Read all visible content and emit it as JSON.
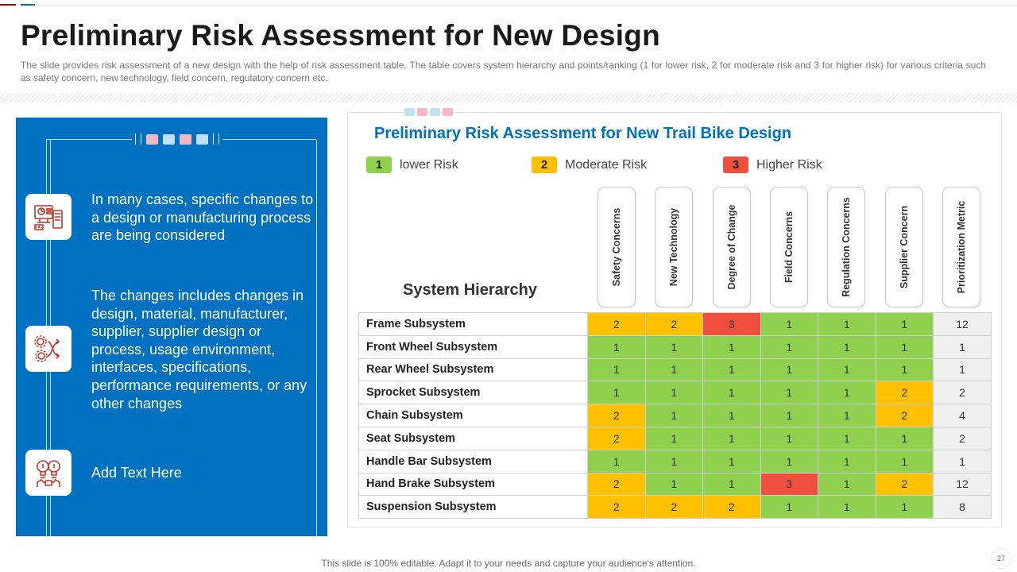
{
  "slide": {
    "title": "Preliminary Risk Assessment for New Design",
    "subtitle": "The slide provides  risk assessment of a new design with the help of risk assessment table. The table covers system hierarchy and points/ranking (1 for lower risk, 2 for moderate risk and 3 for higher risk) for various criteria such as safety concern, new technology, field concern, regulatory concern etc.",
    "footer": "This slide is 100% editable. Adapt it to your needs and capture your audience's attention.",
    "page_number": "27"
  },
  "left_panel": {
    "items": [
      {
        "text": "In many cases, specific changes to a design or manufacturing process are being considered",
        "icon": "design-dashboard-icon"
      },
      {
        "text": "The changes includes changes in design, material, manufacturer, supplier, supplier design or process, usage environment, interfaces, specifications, performance requirements, or any other changes",
        "icon": "gears-arrows-icon"
      },
      {
        "text": "Add Text Here",
        "icon": "ideas-bulbs-icon"
      }
    ]
  },
  "table": {
    "title": "Preliminary Risk Assessment for New Trail Bike Design",
    "legend": [
      {
        "value": "1",
        "label": "lower Risk",
        "color": "#8fd04e"
      },
      {
        "value": "2",
        "label": "Moderate Risk",
        "color": "#ffc000"
      },
      {
        "value": "3",
        "label": "Higher Risk",
        "color": "#f04e3e"
      }
    ],
    "row_header": "System Hierarchy",
    "columns": [
      "Safety Concerns",
      "New Technology",
      "Degree of Change",
      "Field Concerns",
      "Regulation Concerns",
      "Supplier Concern",
      "Prioritization Metric"
    ],
    "rows": [
      {
        "name": "Frame Subsystem",
        "scores": [
          "2",
          "2",
          "3",
          "1",
          "1",
          "1"
        ],
        "metric": "12"
      },
      {
        "name": "Front Wheel Subsystem",
        "scores": [
          "1",
          "1",
          "1",
          "1",
          "1",
          "1"
        ],
        "metric": "1"
      },
      {
        "name": "Rear Wheel Subsystem",
        "scores": [
          "1",
          "1",
          "1",
          "1",
          "1",
          "1"
        ],
        "metric": "1"
      },
      {
        "name": "Sprocket Subsystem",
        "scores": [
          "1",
          "1",
          "1",
          "1",
          "1",
          "2"
        ],
        "metric": "2"
      },
      {
        "name": "Chain Subsystem",
        "scores": [
          "2",
          "1",
          "1",
          "1",
          "1",
          "2"
        ],
        "metric": "4"
      },
      {
        "name": "Seat Subsystem",
        "scores": [
          "2",
          "1",
          "1",
          "1",
          "1",
          "1"
        ],
        "metric": "2"
      },
      {
        "name": "Handle Bar Subsystem",
        "scores": [
          "1",
          "1",
          "1",
          "1",
          "1",
          "1"
        ],
        "metric": "1"
      },
      {
        "name": "Hand Brake Subsystem",
        "scores": [
          "2",
          "1",
          "1",
          "3",
          "1",
          "2"
        ],
        "metric": "12"
      },
      {
        "name": "Suspension Subsystem",
        "scores": [
          "2",
          "2",
          "2",
          "1",
          "1",
          "1"
        ],
        "metric": "8"
      }
    ]
  }
}
